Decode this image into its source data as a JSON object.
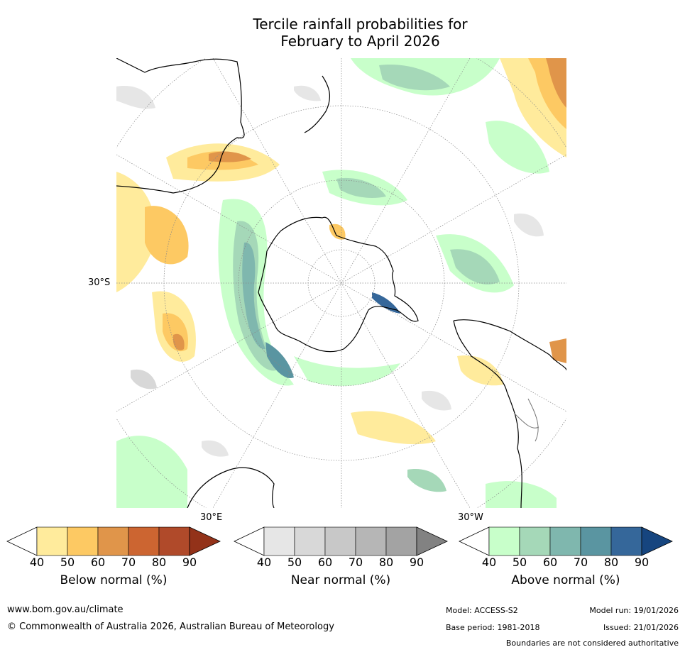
{
  "title": {
    "line1": "Tercile rainfall probabilities for",
    "line2": "February to April 2026"
  },
  "map": {
    "projection": "south-polar-stereographic",
    "labels": {
      "lat_30s": "30°S",
      "lon_30e": "30°E",
      "lon_30w": "30°W"
    },
    "colors": {
      "land_outline": "#000000",
      "boundary": "#777777",
      "graticule": "#888888"
    }
  },
  "colorbars": [
    {
      "name": "below",
      "label": "Below normal (%)",
      "ticks": [
        "40",
        "50",
        "60",
        "70",
        "80",
        "90"
      ],
      "colors": [
        "#ffffff",
        "#ffeb9c",
        "#fdc963",
        "#e0954a",
        "#cc6531",
        "#b04a2a",
        "#933219"
      ]
    },
    {
      "name": "near",
      "label": "Near normal (%)",
      "ticks": [
        "40",
        "50",
        "60",
        "70",
        "80",
        "90"
      ],
      "colors": [
        "#ffffff",
        "#e6e6e6",
        "#d8d8d8",
        "#c8c8c8",
        "#b6b6b6",
        "#a3a3a3",
        "#828282"
      ]
    },
    {
      "name": "above",
      "label": "Above normal (%)",
      "ticks": [
        "40",
        "50",
        "60",
        "70",
        "80",
        "90"
      ],
      "colors": [
        "#ffffff",
        "#c8ffca",
        "#a5d8b8",
        "#7fb7ae",
        "#5a95a1",
        "#35679a",
        "#16457f"
      ]
    }
  ],
  "footer": {
    "url": "www.bom.gov.au/climate",
    "copyright": "© Commonwealth of Australia 2026, Australian Bureau of Meteorology",
    "model": "Model: ACCESS-S2",
    "base_period": "Base period: 1981-2018",
    "model_run": "Model run: 19/01/2026",
    "issued": "Issued: 21/01/2026",
    "disclaimer": "Boundaries are not considered authoritative"
  }
}
